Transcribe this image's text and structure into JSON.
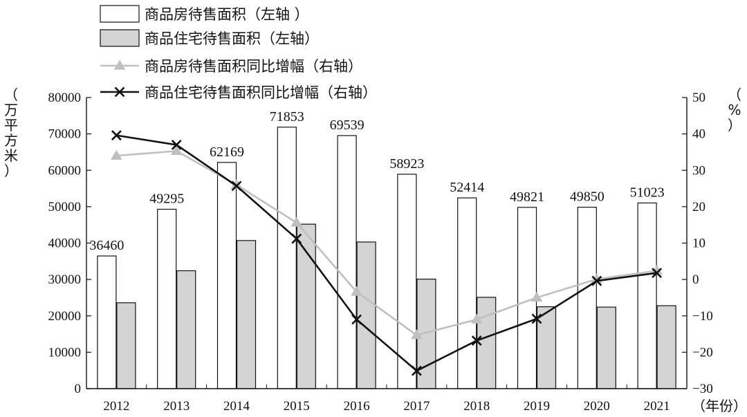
{
  "chart_data": {
    "type": "bar",
    "categories": [
      "2012",
      "2013",
      "2014",
      "2015",
      "2016",
      "2017",
      "2018",
      "2019",
      "2020",
      "2021"
    ],
    "xlabel": "（年份）",
    "ylabel_left": "（万平方米）",
    "ylabel_right": "（%）",
    "ylim_left": [
      0,
      80000
    ],
    "ylim_right": [
      -30,
      50
    ],
    "yticks_left": [
      "0",
      "10000",
      "20000",
      "30000",
      "40000",
      "50000",
      "60000",
      "70000",
      "80000"
    ],
    "yticks_right": [
      "−30",
      "−20",
      "−10",
      "0",
      "10",
      "20",
      "30",
      "40",
      "50"
    ],
    "grid": false,
    "legend_position": "top-left",
    "series": [
      {
        "name": "商品房待售面积（左轴 ）",
        "kind": "bar",
        "axis": "left",
        "color": "#ffffff",
        "values": [
          36460,
          49295,
          62169,
          71853,
          69539,
          58923,
          52414,
          49821,
          49850,
          51023
        ],
        "labels": [
          "36460",
          "49295",
          "62169",
          "71853",
          "69539",
          "58923",
          "52414",
          "49821",
          "49850",
          "51023"
        ]
      },
      {
        "name": "商品住宅待售面积（左轴）",
        "kind": "bar",
        "axis": "left",
        "color": "#d4d4d4",
        "values": [
          23600,
          32400,
          40700,
          45200,
          40300,
          30100,
          25100,
          22500,
          22400,
          22800
        ]
      },
      {
        "name": "商品房待售面积同比增幅（右轴）",
        "kind": "line",
        "marker": "triangle",
        "axis": "right",
        "color": "#bfbfbf",
        "values": [
          34,
          35.3,
          26,
          15.6,
          -3.4,
          -15.3,
          -11,
          -5,
          0.1,
          2.4
        ]
      },
      {
        "name": "商品住宅待售面积同比增幅（右轴）",
        "kind": "line",
        "marker": "x",
        "axis": "right",
        "color": "#111111",
        "values": [
          39.6,
          37,
          25.7,
          11.2,
          -11,
          -25.1,
          -16.8,
          -10.8,
          -0.4,
          1.8
        ]
      }
    ]
  }
}
